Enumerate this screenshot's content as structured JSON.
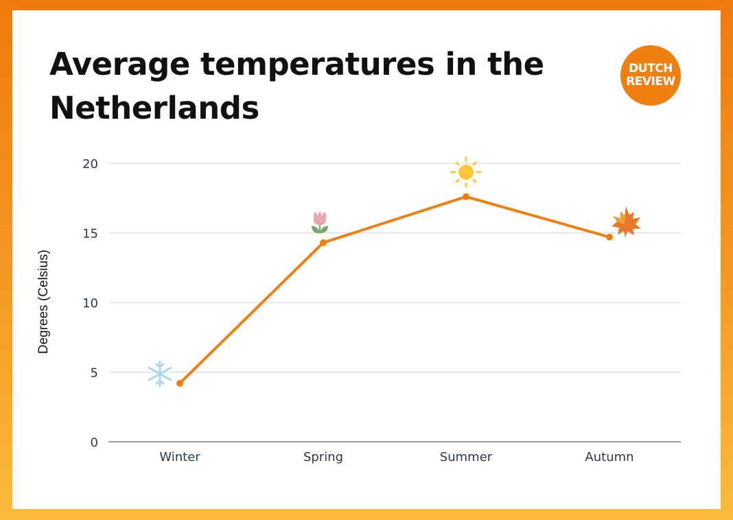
{
  "title": "Average temperatures in the Netherlands",
  "logo": {
    "line1": "DUTCH",
    "line2": "REVIEW",
    "color": "#f07f12"
  },
  "colors": {
    "line": "#f07f12",
    "grid": "#d9dde0",
    "axis": "#9aa0a6",
    "border_top": "#f07a0c",
    "border_bottom": "#fbbb3c"
  },
  "chart_data": {
    "type": "line",
    "title": "Average temperatures in the Netherlands",
    "xlabel": "",
    "ylabel": "Degrees (Celsius)",
    "categories": [
      "Winter",
      "Spring",
      "Summer",
      "Autumn"
    ],
    "values": [
      4.2,
      14.3,
      17.6,
      14.7
    ],
    "icons": [
      "snowflake-icon",
      "tulip-icon",
      "sun-icon",
      "maple-leaf-icon"
    ],
    "ylim": [
      0,
      20
    ],
    "yticks": [
      0,
      5,
      10,
      15,
      20
    ],
    "grid": true,
    "legend": null
  }
}
